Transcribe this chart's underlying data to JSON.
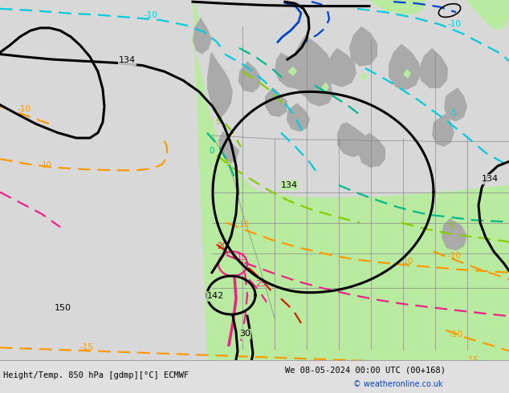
{
  "title_left": "Height/Temp. 850 hPa [gdmp][°C] ECMWF",
  "title_right": "We 08-05-2024 00:00 UTC (00+168)",
  "copyright": "© weatheronline.co.uk",
  "bg_color": "#d8d8d8",
  "land_green_color": "#b8eba0",
  "land_gray_color": "#aaaaaa",
  "figsize": [
    6.34,
    4.9
  ],
  "dpi": 100
}
